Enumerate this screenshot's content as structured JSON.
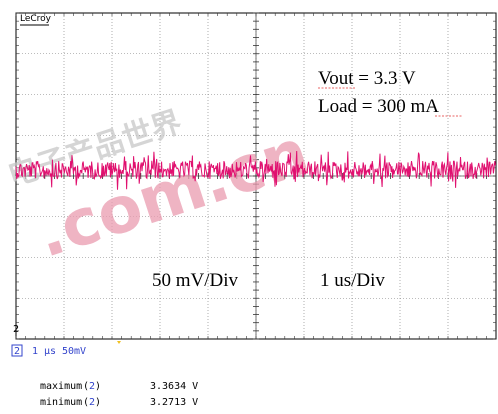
{
  "scope": {
    "brand": "LeCroy",
    "annotation_vout": "Vout  = 3.3 V",
    "annotation_load": "Load = 300 mA",
    "vertical_scale": "50 mV/Div",
    "horizontal_scale": "1 us/Div",
    "channel_marker": "2",
    "trace_color": "#e0106f"
  },
  "status": {
    "channel": "2",
    "time_per_div": "1 µs",
    "volts_per_div": "50mV"
  },
  "measurements": [
    {
      "label": "maximum",
      "channel": "2",
      "value": "3.3634 V"
    },
    {
      "label": "minimum",
      "channel": "2",
      "value": "3.2713 V"
    }
  ],
  "watermark": {
    "chinese": "电子产品世界",
    "domain": ".com.cn"
  }
}
